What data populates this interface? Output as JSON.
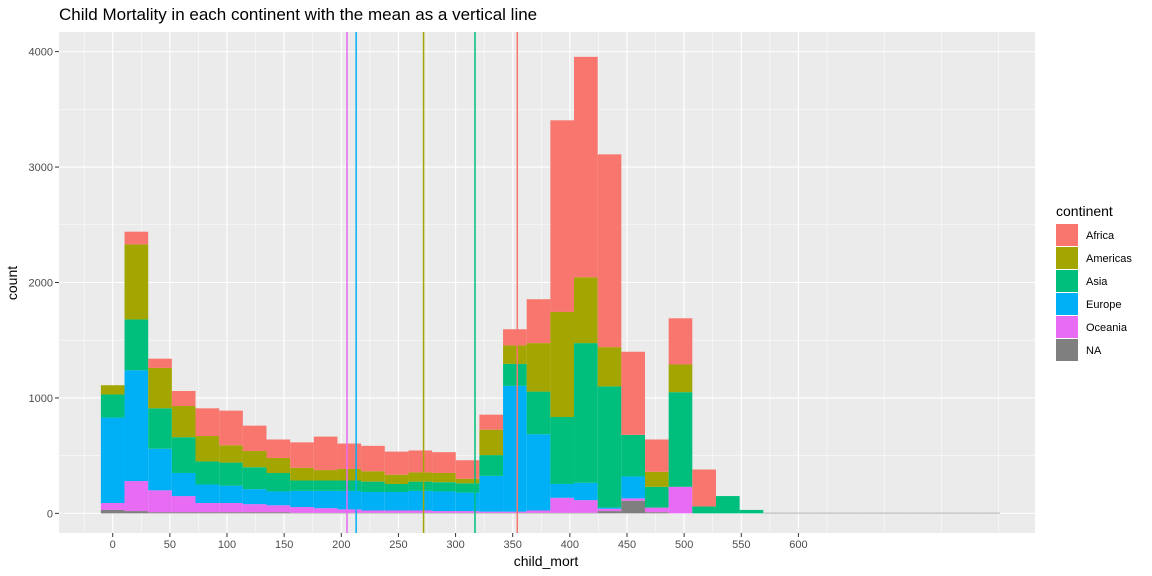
{
  "chart_data": {
    "type": "bar",
    "stacked": true,
    "title": "Child Mortality in each continent with the mean as a vertical line",
    "xlabel": "child_mort",
    "ylabel": "count",
    "xlim": [
      -47,
      807
    ],
    "ylim": [
      -170,
      4170
    ],
    "x_ticks": [
      0,
      50,
      100,
      150,
      200,
      250,
      300,
      350,
      400,
      450,
      500,
      550,
      600
    ],
    "y_ticks": [
      0,
      1000,
      2000,
      3000,
      4000
    ],
    "grid": true,
    "legend_position": "right",
    "legend_title": "continent",
    "bin_width": 20.7,
    "bin_centers": [
      0,
      20.7,
      41.4,
      62.1,
      82.8,
      103.5,
      124.2,
      144.9,
      165.6,
      186.3,
      207,
      227.7,
      248.4,
      269.1,
      289.8,
      310.5,
      331.2,
      351.9,
      372.6,
      393.3,
      414,
      434.7,
      455.4,
      476.1,
      496.8,
      517.5,
      538.2,
      558.9,
      579.6,
      600.3,
      621,
      641.7,
      662.4,
      683.1,
      703.8,
      724.5,
      745.2,
      765.9
    ],
    "series": [
      {
        "name": "NA",
        "color": "#7F7F7F",
        "values": [
          30,
          20,
          10,
          10,
          10,
          10,
          10,
          10,
          5,
          5,
          5,
          5,
          5,
          5,
          5,
          5,
          5,
          5,
          5,
          5,
          5,
          20,
          110,
          10,
          0,
          0,
          0,
          0,
          5,
          5,
          5,
          5,
          5,
          5,
          5,
          5,
          5,
          5
        ]
      },
      {
        "name": "Oceania",
        "color": "#E76BF3",
        "values": [
          60,
          260,
          190,
          140,
          80,
          80,
          70,
          60,
          50,
          40,
          30,
          20,
          20,
          20,
          15,
          15,
          10,
          10,
          20,
          130,
          110,
          20,
          20,
          40,
          230,
          0,
          0,
          0,
          0,
          0,
          0,
          0,
          0,
          0,
          0,
          0,
          0,
          0
        ]
      },
      {
        "name": "Europe",
        "color": "#00B0F6",
        "values": [
          740,
          960,
          360,
          200,
          160,
          150,
          130,
          120,
          140,
          150,
          160,
          160,
          160,
          170,
          170,
          160,
          310,
          1090,
          660,
          120,
          150,
          10,
          190,
          0,
          0,
          0,
          0,
          0,
          0,
          0,
          0,
          0,
          0,
          0,
          0,
          0,
          0,
          0
        ]
      },
      {
        "name": "Asia",
        "color": "#00BF7D",
        "values": [
          200,
          440,
          350,
          310,
          200,
          200,
          190,
          160,
          90,
          90,
          90,
          90,
          70,
          80,
          80,
          80,
          180,
          190,
          370,
          580,
          1210,
          1050,
          360,
          180,
          820,
          60,
          150,
          30,
          0,
          0,
          0,
          0,
          0,
          0,
          0,
          0,
          0,
          0
        ]
      },
      {
        "name": "Americas",
        "color": "#A3A500",
        "values": [
          80,
          650,
          350,
          270,
          220,
          150,
          140,
          130,
          110,
          90,
          100,
          90,
          80,
          80,
          80,
          40,
          220,
          160,
          420,
          910,
          570,
          340,
          0,
          130,
          240,
          0,
          0,
          0,
          0,
          0,
          0,
          0,
          0,
          0,
          0,
          0,
          0,
          0
        ]
      },
      {
        "name": "Africa",
        "color": "#F8766D",
        "values": [
          0,
          110,
          80,
          130,
          240,
          300,
          220,
          160,
          220,
          290,
          220,
          220,
          200,
          190,
          180,
          160,
          130,
          140,
          380,
          1660,
          1910,
          1670,
          720,
          280,
          400,
          320,
          0,
          0,
          0,
          0,
          0,
          0,
          0,
          0,
          0,
          0,
          0,
          0
        ]
      }
    ],
    "mean_lines": [
      {
        "series": "Oceania",
        "x": 205,
        "color": "#E76BF3"
      },
      {
        "series": "Europe",
        "x": 213,
        "color": "#00B0F6"
      },
      {
        "series": "Americas",
        "x": 272,
        "color": "#A3A500"
      },
      {
        "series": "Asia",
        "x": 317,
        "color": "#00BF7D"
      },
      {
        "series": "Africa",
        "x": 354,
        "color": "#F8766D"
      }
    ],
    "legend_order": [
      "Africa",
      "Americas",
      "Asia",
      "Europe",
      "Oceania",
      "NA"
    ]
  }
}
